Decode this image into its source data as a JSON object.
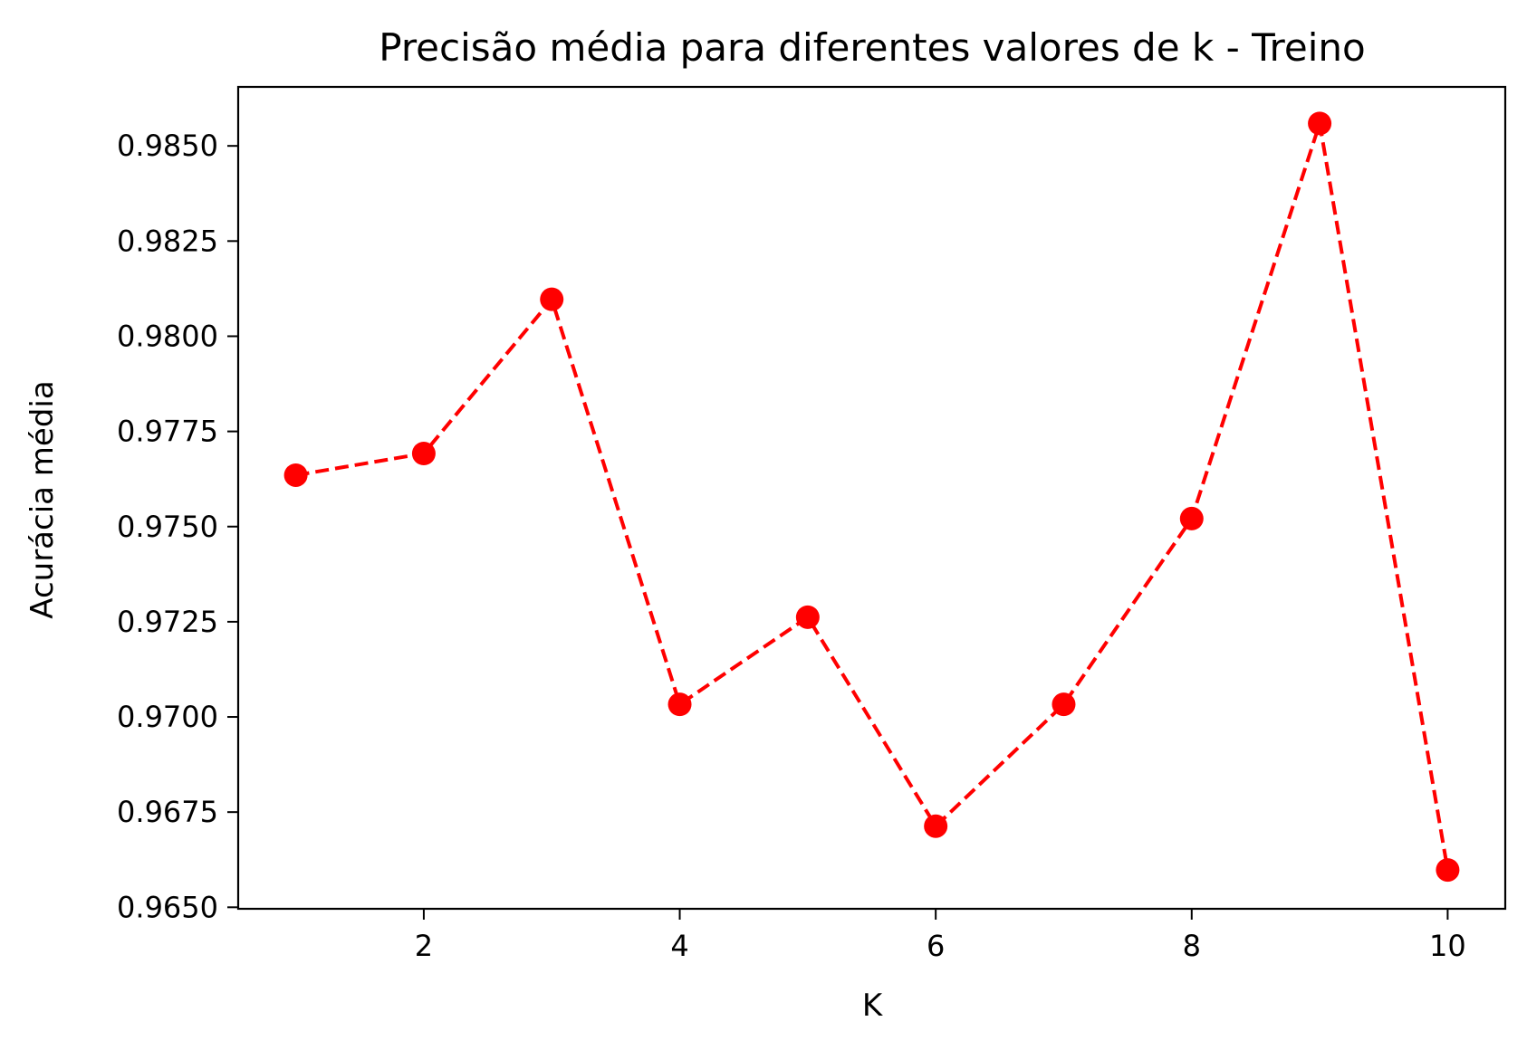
{
  "chart_data": {
    "type": "line",
    "title": "Precisão média para diferentes valores de k - Treino",
    "xlabel": "K",
    "ylabel": "Acurácia média",
    "x": [
      1,
      2,
      3,
      4,
      5,
      6,
      7,
      8,
      9,
      10
    ],
    "series": [
      {
        "values": [
          0.97635,
          0.97692,
          0.98097,
          0.97033,
          0.97262,
          0.96713,
          0.97033,
          0.97521,
          0.98559,
          0.96598
        ],
        "color": "#ff0000",
        "line_style": "dashed",
        "marker": "circle"
      }
    ],
    "xlim": [
      0.55,
      10.45
    ],
    "ylim": [
      0.96496,
      0.98655
    ],
    "x_ticks": [
      2,
      4,
      6,
      8,
      10
    ],
    "x_tick_labels": [
      "2",
      "4",
      "6",
      "8",
      "10"
    ],
    "y_ticks": [
      0.965,
      0.9675,
      0.97,
      0.9725,
      0.975,
      0.9775,
      0.98,
      0.9825,
      0.985
    ],
    "y_tick_labels": [
      "0.9650",
      "0.9675",
      "0.9700",
      "0.9725",
      "0.9750",
      "0.9775",
      "0.9800",
      "0.9825",
      "0.9850"
    ],
    "grid": false,
    "legend": "none"
  }
}
